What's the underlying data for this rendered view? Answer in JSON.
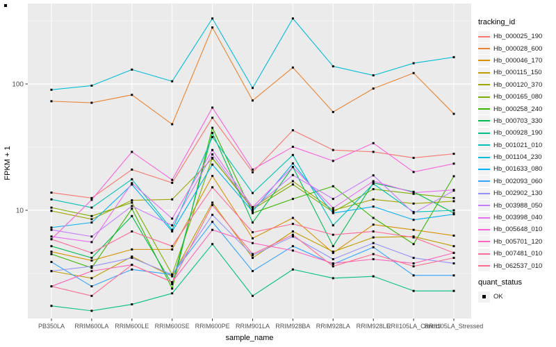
{
  "figure": {
    "background": "#FFFFFF",
    "panel_background": "#EBEBEB",
    "grid_major_color": "#FFFFFF",
    "axis_text_color": "#4D4D4D",
    "tick_color": "#333333"
  },
  "chart_data": {
    "type": "line",
    "title": "",
    "xlabel": "sample_name",
    "ylabel": "FPKM + 1",
    "y_scale": "log10",
    "y_major_ticks": [
      10,
      100
    ],
    "y_major_tick_labels": [
      "10",
      "100"
    ],
    "y_minor_ticks": [
      3.16,
      31.6,
      316
    ],
    "ylim": [
      1.4,
      430
    ],
    "grid": "on",
    "legend_position": "right",
    "legend_title": "tracking_id",
    "quant_legend_title": "quant_status",
    "quant_legend_items": [
      {
        "label": "OK",
        "marker": "black-square"
      }
    ],
    "point_marker": "black-square",
    "categories": [
      "PB350LA",
      "RRIM600LA",
      "RRIM600LE",
      "RRIM600SE",
      "RRIM600PE",
      "RRIM901LA",
      "RRIM928BA",
      "RRIM928LA",
      "RRIM928LE",
      "RRII105LA_Control",
      "RRII105LA_Stressed"
    ],
    "series": [
      {
        "name": "Hb_000025_190",
        "color": "#F8766D",
        "values": [
          13.8,
          12.5,
          21,
          16.5,
          54,
          20,
          43,
          30,
          29,
          26,
          28
        ]
      },
      {
        "name": "Hb_000028_600",
        "color": "#EA8331",
        "values": [
          73,
          71,
          82,
          48,
          280,
          74,
          135,
          60,
          92,
          122,
          58
        ]
      },
      {
        "name": "Hb_000046_170",
        "color": "#D89000",
        "values": [
          4.7,
          4.0,
          4.9,
          4.9,
          18.7,
          6.0,
          8.7,
          4.6,
          7.7,
          7.0,
          6.3
        ]
      },
      {
        "name": "Hb_000115_150",
        "color": "#C09B00",
        "values": [
          3.3,
          2.9,
          4.3,
          3.0,
          11.5,
          4.2,
          6.8,
          4.7,
          6.1,
          6.2,
          5.2
        ]
      },
      {
        "name": "Hb_000120_370",
        "color": "#A3A500",
        "values": [
          9.9,
          8.5,
          12.0,
          12.2,
          25.7,
          10.5,
          17.0,
          10.0,
          12.2,
          11.3,
          11.8
        ]
      },
      {
        "name": "Hb_000165_080",
        "color": "#7CAE00",
        "values": [
          10.5,
          9.0,
          11.5,
          3.1,
          26.0,
          10.2,
          16.0,
          9.7,
          14.7,
          13.5,
          12.5
        ]
      },
      {
        "name": "Hb_000258_240",
        "color": "#39B600",
        "values": [
          4.5,
          3.5,
          10.3,
          2.4,
          45.0,
          9.5,
          12.3,
          15.5,
          8.7,
          5.4,
          18.6
        ]
      },
      {
        "name": "Hb_000703_330",
        "color": "#00BB4E",
        "values": [
          5.2,
          4.2,
          9.0,
          2.6,
          41.0,
          8.0,
          22.0,
          5.2,
          16.5,
          14.0,
          9.5
        ]
      },
      {
        "name": "Hb_000928_190",
        "color": "#00C087",
        "values": [
          1.75,
          1.6,
          1.8,
          2.2,
          5.4,
          2.1,
          3.4,
          2.9,
          3.0,
          2.3,
          2.3
        ]
      },
      {
        "name": "Hb_001021_010",
        "color": "#00C0B4",
        "values": [
          12.2,
          10.5,
          17.6,
          7.0,
          38.0,
          13.7,
          27.4,
          7.6,
          16.2,
          9.7,
          10.0
        ]
      },
      {
        "name": "Hb_001104_230",
        "color": "#00BCD8",
        "values": [
          90,
          97,
          130,
          105,
          330,
          93,
          330,
          138,
          117,
          146,
          163
        ]
      },
      {
        "name": "Hb_001633_080",
        "color": "#00B0F6",
        "values": [
          7.3,
          8.0,
          16.0,
          6.8,
          23.0,
          9.8,
          23.5,
          9.5,
          10.7,
          8.4,
          9.3
        ]
      },
      {
        "name": "Hb_002093_060",
        "color": "#35A2FF",
        "values": [
          3.9,
          2.5,
          3.4,
          3.1,
          8.1,
          3.3,
          5.2,
          3.75,
          5.1,
          3.05,
          3.05
        ]
      },
      {
        "name": "Hb_002902_130",
        "color": "#9590FF",
        "values": [
          3.3,
          3.6,
          4.2,
          3.1,
          9.2,
          4.4,
          6.2,
          4.1,
          5.5,
          4.2,
          3.8
        ]
      },
      {
        "name": "Hb_003988_050",
        "color": "#C77CFF",
        "values": [
          7.0,
          6.2,
          10.8,
          7.6,
          27.7,
          10.3,
          19.0,
          12.3,
          18.9,
          9.5,
          14.3
        ]
      },
      {
        "name": "Hb_003998_040",
        "color": "#E76BF3",
        "values": [
          6.2,
          5.6,
          16.4,
          8.6,
          30.0,
          10.6,
          22.0,
          10.4,
          17.0,
          13.8,
          14.5
        ]
      },
      {
        "name": "Hb_005648_010",
        "color": "#FA62DB",
        "values": [
          5.9,
          12.1,
          29.0,
          17.4,
          65.0,
          21.0,
          31.8,
          24.6,
          34.0,
          20.1,
          23.4
        ]
      },
      {
        "name": "Hb_005701_120",
        "color": "#FF62BC",
        "values": [
          2.5,
          3.3,
          3.7,
          2.7,
          7.0,
          5.5,
          4.8,
          3.8,
          4.1,
          3.8,
          4.6
        ]
      },
      {
        "name": "Hb_007481_010",
        "color": "#FF6A98",
        "values": [
          5.9,
          4.6,
          6.8,
          5.2,
          15.2,
          6.7,
          7.8,
          6.4,
          6.8,
          6.1,
          4.6
        ]
      },
      {
        "name": "Hb_062537_010",
        "color": "#FF6C91",
        "values": [
          2.5,
          2.1,
          3.7,
          2.7,
          11.0,
          4.5,
          6.4,
          3.6,
          4.5,
          3.6,
          4.2
        ]
      }
    ]
  }
}
